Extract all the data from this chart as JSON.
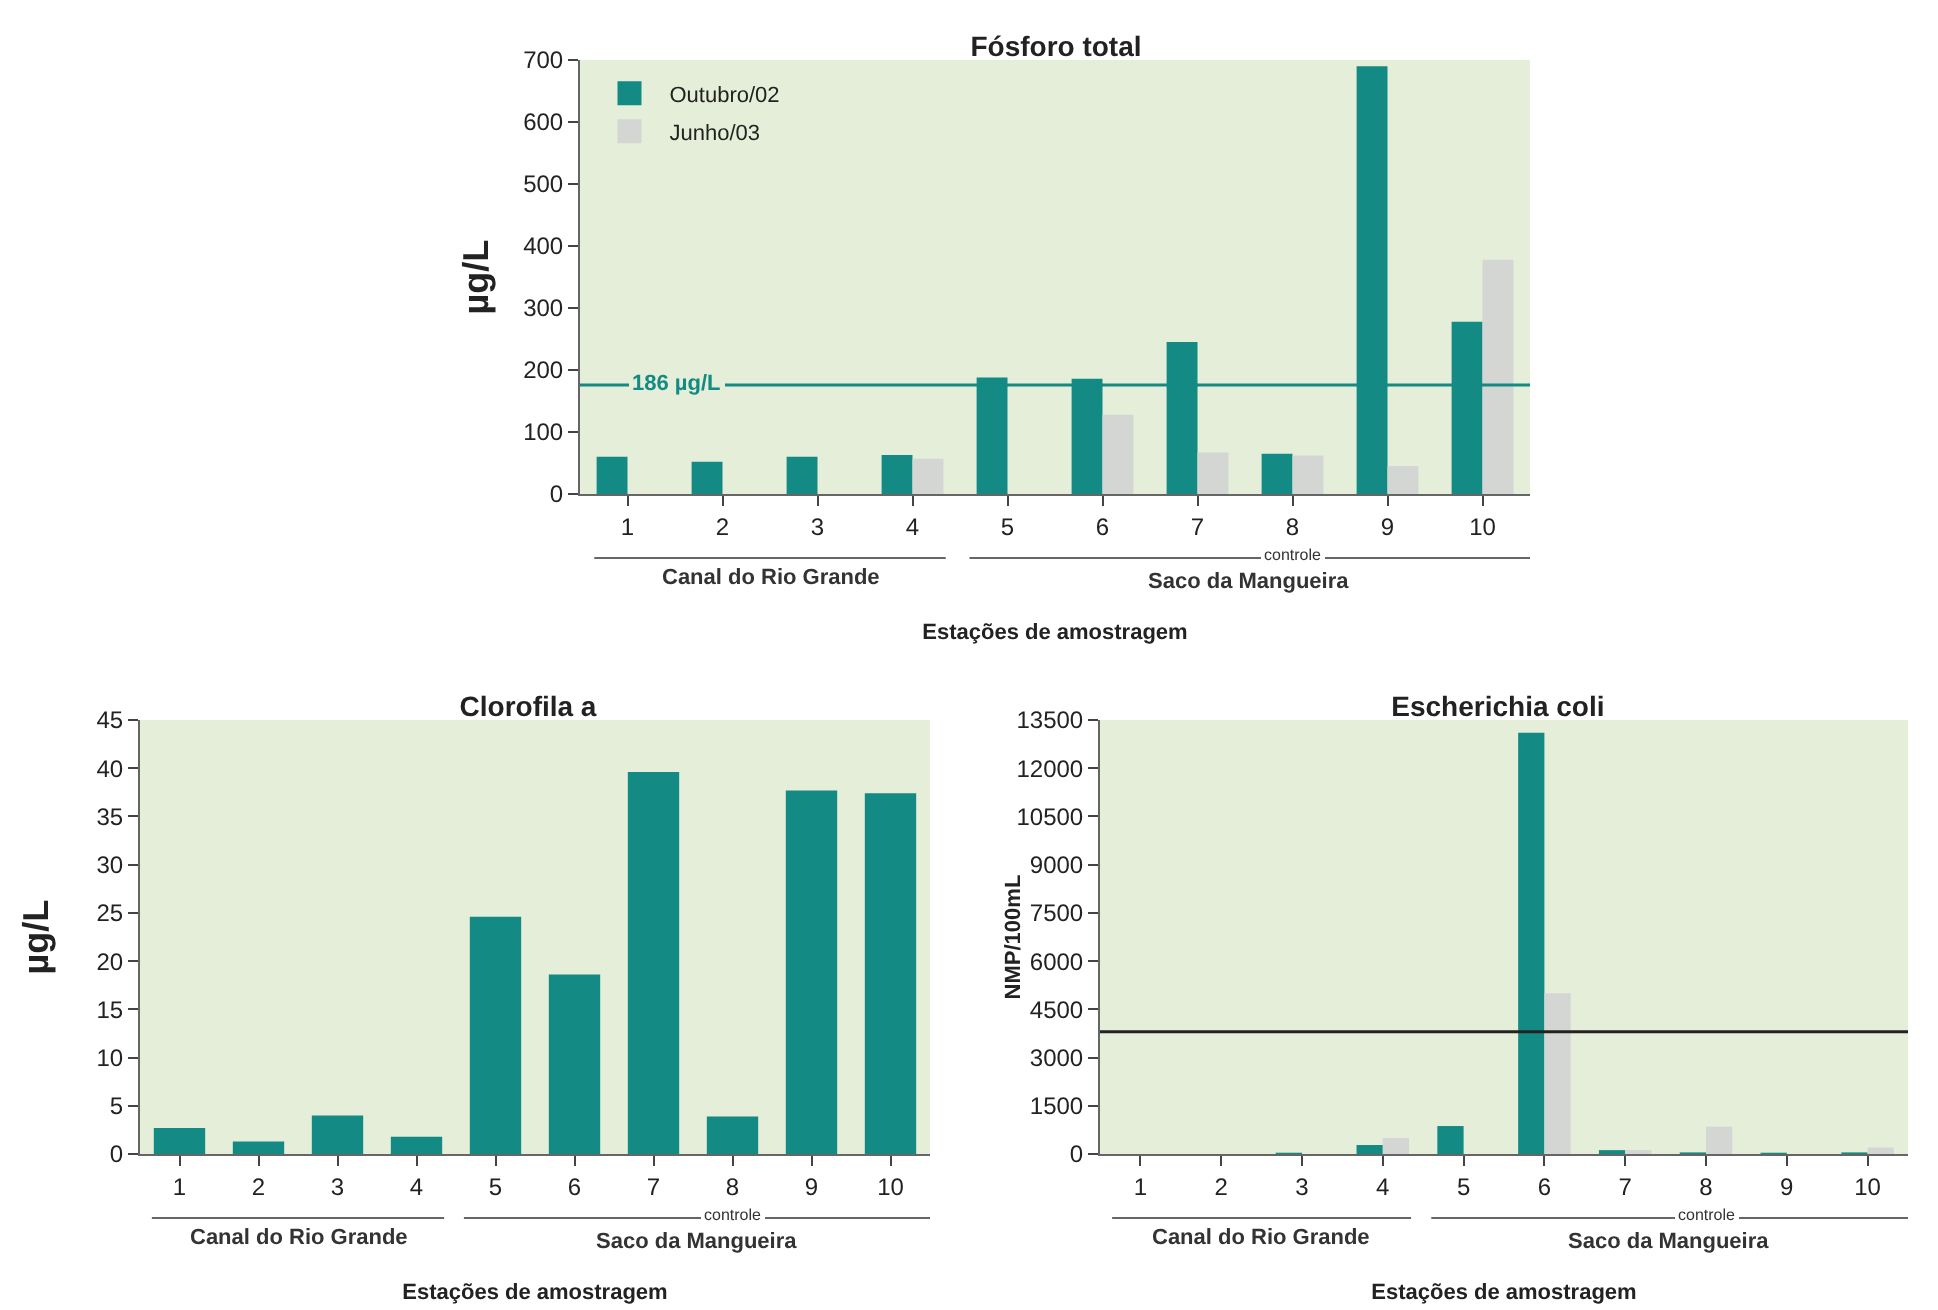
{
  "chart_data": [
    {
      "type": "bar",
      "title": "Fósforo total",
      "xlabel": "Estações de amostragem",
      "ylabel": "µg/L",
      "categories": [
        "1",
        "2",
        "3",
        "4",
        "5",
        "6",
        "7",
        "8",
        "9",
        "10"
      ],
      "series": [
        {
          "name": "Outubro/02",
          "color": "#138a84",
          "values": [
            60,
            52,
            60,
            63,
            188,
            186,
            245,
            65,
            690,
            278
          ]
        },
        {
          "name": "Junho/03",
          "color": "#d3d6d3",
          "values": [
            null,
            null,
            null,
            57,
            null,
            128,
            67,
            62,
            45,
            378
          ]
        }
      ],
      "ylim": [
        0,
        700
      ],
      "yticks": [
        0,
        100,
        200,
        300,
        400,
        500,
        600,
        700
      ],
      "grid": false,
      "legend": "top left",
      "ref_lines": [
        {
          "axis": "y",
          "value": 176,
          "label": "186 µg/L",
          "color": "#138a84"
        }
      ],
      "annotations": [
        "Canal do Rio Grande",
        "Saco da Mangueira",
        "controle"
      ]
    },
    {
      "type": "bar",
      "title": "Clorofila a",
      "xlabel": "Estações de amostragem",
      "ylabel": "µg/L",
      "categories": [
        "1",
        "2",
        "3",
        "4",
        "5",
        "6",
        "7",
        "8",
        "9",
        "10"
      ],
      "series": [
        {
          "color": "#138a84",
          "values": [
            2.7,
            1.3,
            4.0,
            1.8,
            24.6,
            18.6,
            39.6,
            3.9,
            37.7,
            37.4
          ]
        }
      ],
      "ylim": [
        0,
        45
      ],
      "yticks": [
        0,
        5,
        10,
        15,
        20,
        25,
        30,
        35,
        40,
        45
      ],
      "grid": false,
      "legend": false,
      "annotations": [
        "Canal do Rio Grande",
        "Saco da Mangueira",
        "controle"
      ]
    },
    {
      "type": "bar",
      "title": "Escherichia coli",
      "xlabel": "Estações de amostragem",
      "ylabel": "NMP/100mL",
      "categories": [
        "1",
        "2",
        "3",
        "4",
        "5",
        "6",
        "7",
        "8",
        "9",
        "10"
      ],
      "series": [
        {
          "color": "#138a84",
          "values": [
            0,
            0,
            40,
            280,
            870,
            13100,
            120,
            50,
            40,
            50
          ]
        },
        {
          "color": "#d3d6d3",
          "values": [
            null,
            null,
            null,
            500,
            null,
            5000,
            120,
            850,
            null,
            200
          ]
        }
      ],
      "ylim": [
        0,
        13500
      ],
      "yticks": [
        0,
        1500,
        3000,
        4500,
        6000,
        7500,
        9000,
        10500,
        12000,
        13500
      ],
      "grid": false,
      "legend": false,
      "ref_lines": [
        {
          "axis": "y",
          "value": 3800,
          "color": "#222222"
        }
      ],
      "annotations": [
        "Canal do Rio Grande",
        "Saco da Mangueira",
        "controle"
      ]
    }
  ]
}
